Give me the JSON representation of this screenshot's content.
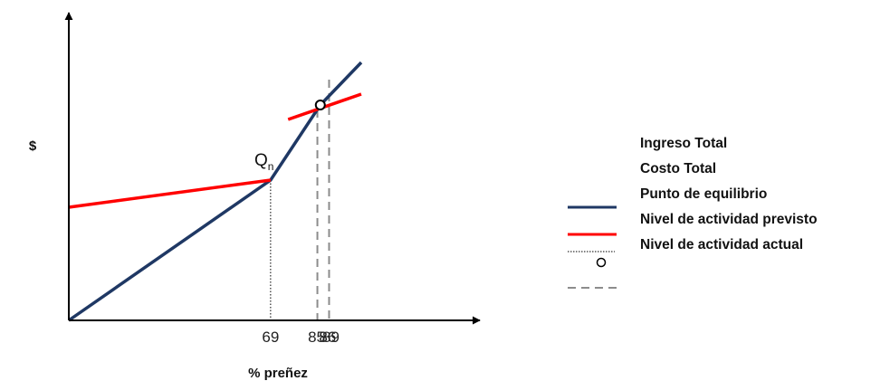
{
  "chart_data": {
    "type": "line",
    "title": "",
    "xlabel": "% preñez",
    "ylabel": "$",
    "x_ticks": [
      "69",
      "85",
      "86",
      "89"
    ],
    "point_label": {
      "main": "Q",
      "sub": "n"
    },
    "series": [
      {
        "name": "Ingreso Total",
        "color": "#1f3864",
        "style": "solid",
        "points": [
          [
            0,
            0
          ],
          [
            69,
            155
          ],
          [
            86,
            238
          ],
          [
            100,
            285
          ]
        ]
      },
      {
        "name": "Costo Total",
        "color": "#ff0000",
        "style": "solid",
        "segments": [
          [
            [
              0,
              125
            ],
            [
              69,
              155
            ]
          ],
          [
            [
              75,
              222
            ],
            [
              100,
              250
            ]
          ]
        ]
      },
      {
        "name": "Punto de equilibrio",
        "color": "#000000",
        "style": "dotted",
        "vline": 69
      },
      {
        "name": "Nivel de actividad previsto",
        "color": "#000000",
        "style": "circle",
        "point": [
          86,
          238
        ]
      },
      {
        "name": "Nivel de actividad actual",
        "color": "#8c8c8c",
        "style": "dashed",
        "vlines": [
          85,
          89
        ]
      }
    ]
  },
  "legend": {
    "labels": [
      "Ingreso Total",
      "Costo Total",
      "Punto de equilibrio",
      "Nivel de actividad previsto",
      "Nivel de actividad actual"
    ],
    "symbols": [
      {
        "icon": "solid-line-icon",
        "color": "#1f3864"
      },
      {
        "icon": "solid-line-icon",
        "color": "#ff0000"
      },
      {
        "icon": "dotted-line-icon",
        "color": "#000000"
      },
      {
        "icon": "circle-marker-icon",
        "color": "#000000"
      },
      {
        "icon": "dashed-line-icon",
        "color": "#8c8c8c"
      }
    ]
  }
}
